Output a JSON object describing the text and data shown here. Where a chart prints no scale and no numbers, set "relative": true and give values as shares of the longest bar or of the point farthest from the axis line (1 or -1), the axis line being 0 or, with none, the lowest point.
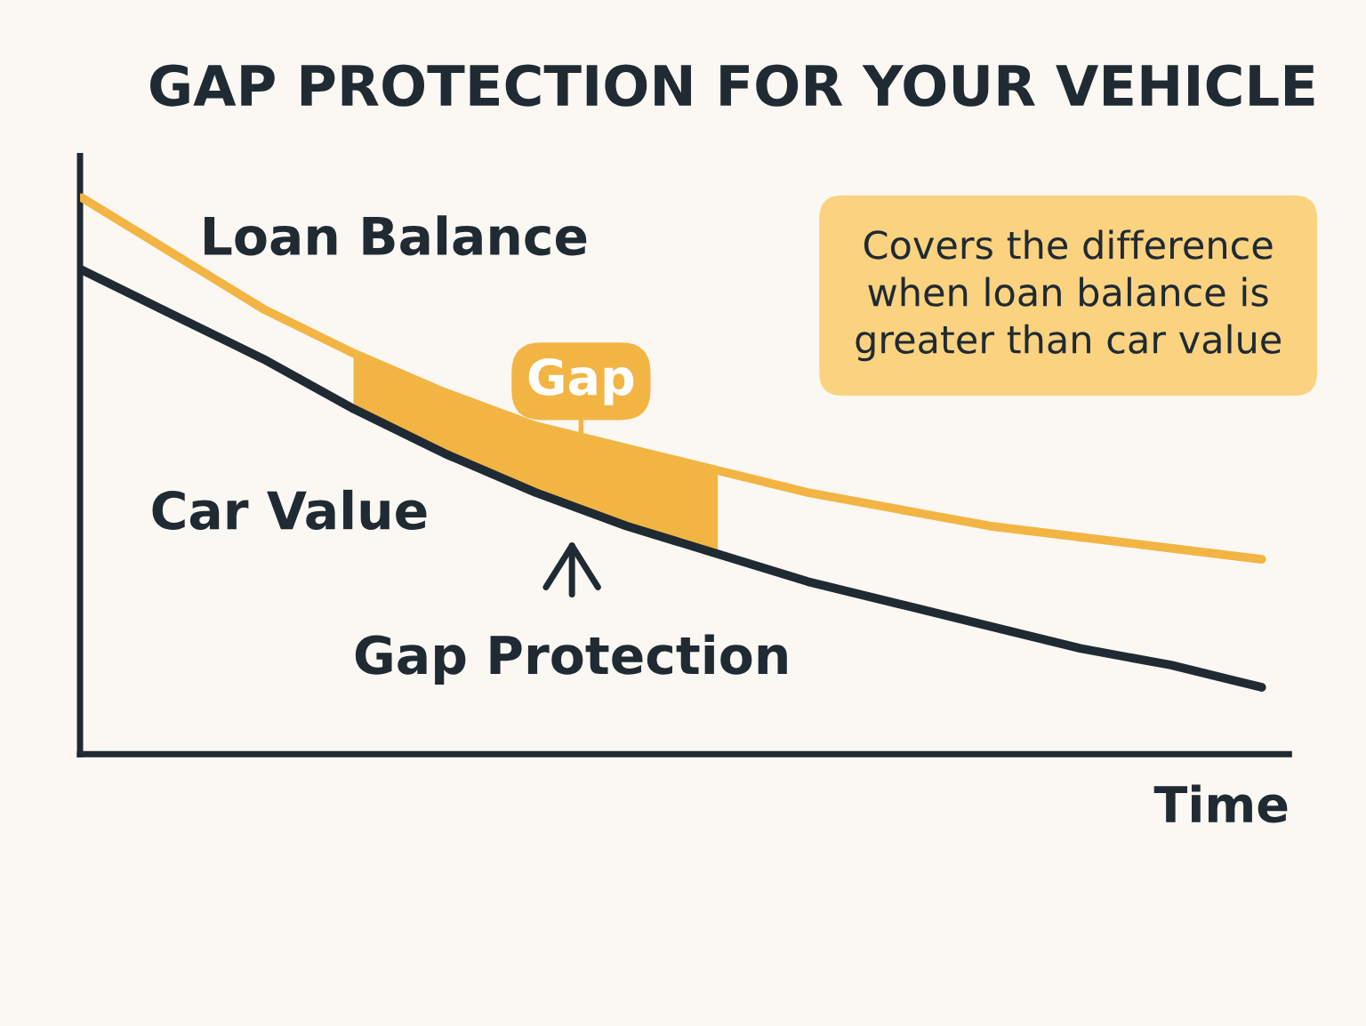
{
  "chart_data": {
    "type": "line",
    "title": "GAP PROTECTION FOR YOUR VEHICLE",
    "xlabel": "Time",
    "relative": true,
    "categories": [
      null,
      null,
      null,
      null,
      null,
      null,
      null,
      null,
      null,
      null,
      null,
      null,
      null,
      null
    ],
    "series": [
      {
        "name": "Loan Balance",
        "color": "#f2b544",
        "values": [
          1,
          0.9,
          0.8,
          0.72,
          0.65,
          0.59,
          0.55,
          0.51,
          0.47,
          0.44,
          0.41,
          0.39,
          0.37,
          0.35
        ],
        "lower": [
          null,
          null,
          null,
          0.62,
          0.54,
          0.47,
          0.41,
          0.36,
          null,
          null,
          null,
          null,
          null,
          null
        ],
        "upper": [
          null,
          null,
          null,
          0.72,
          0.65,
          0.59,
          0.55,
          0.51,
          null,
          null,
          null,
          null,
          null,
          null
        ]
      },
      {
        "name": "Car Value",
        "color": "#1f2a33",
        "values": [
          0.87,
          0.79,
          0.71,
          0.62,
          0.54,
          0.47,
          0.41,
          0.36,
          0.31,
          0.27,
          0.23,
          0.19,
          0.16,
          0.12
        ]
      }
    ],
    "annotations": [
      "Covers the difference\nwhen loan balance is\ngreater than car value",
      "Gap Protection",
      "Gap"
    ],
    "legend": false
  }
}
